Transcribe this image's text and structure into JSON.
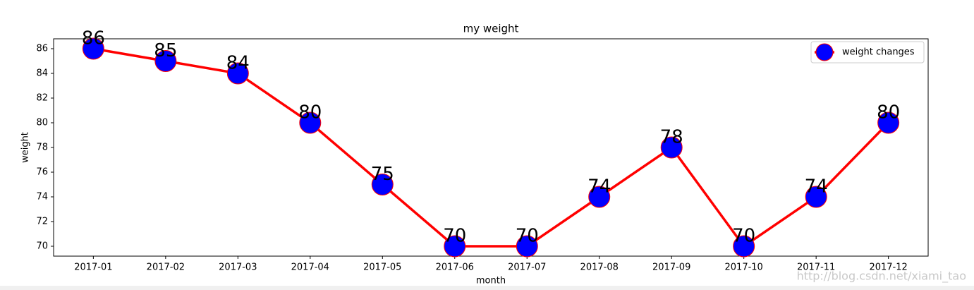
{
  "chart_data": {
    "type": "line",
    "title": "my weight",
    "x_label": "month",
    "y_label": "weight",
    "categories": [
      "2017-01",
      "2017-02",
      "2017-03",
      "2017-04",
      "2017-05",
      "2017-06",
      "2017-07",
      "2017-08",
      "2017-09",
      "2017-10",
      "2017-11",
      "2017-12"
    ],
    "series": [
      {
        "name": "weight changes",
        "color": "#ff0000",
        "marker_color": "#0000ff",
        "values": [
          86,
          85,
          84,
          80,
          75,
          70,
          70,
          74,
          78,
          70,
          74,
          80
        ]
      }
    ],
    "ylim": [
      69.2,
      86.8
    ],
    "yticks": [
      70,
      72,
      74,
      76,
      78,
      80,
      82,
      84,
      86
    ],
    "legend": "upper right",
    "watermark": "http://blog.csdn.net/xiami_tao"
  }
}
